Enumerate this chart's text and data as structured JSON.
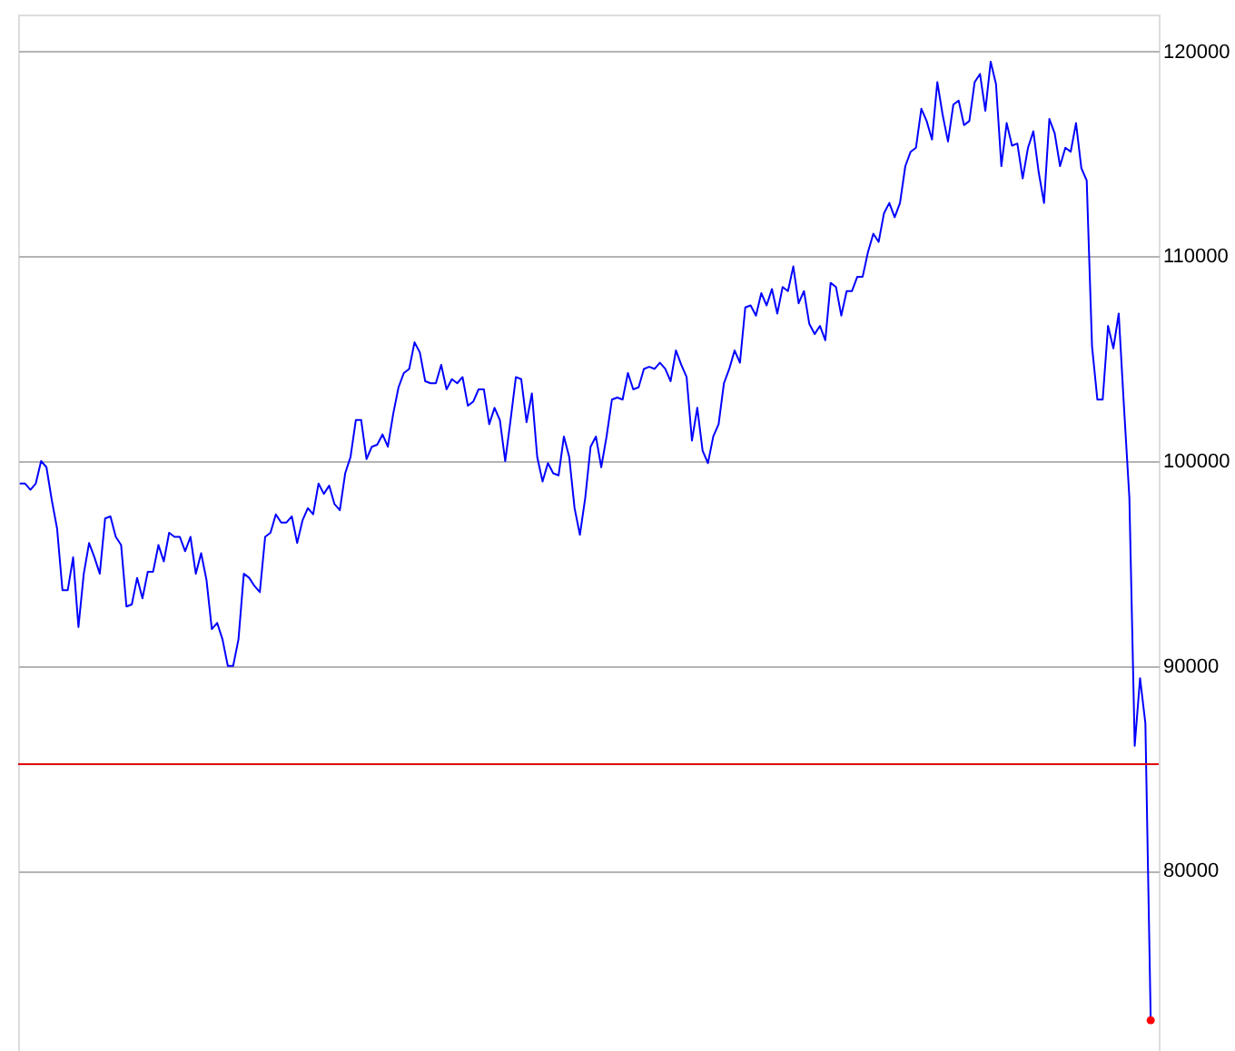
{
  "chart_data": {
    "type": "line",
    "categories": [
      null,
      null,
      null,
      null,
      null,
      null,
      null,
      null,
      null,
      null,
      null,
      null,
      null,
      null,
      null,
      null,
      null,
      null,
      null,
      null,
      null,
      null,
      null,
      null,
      null,
      null,
      null,
      null,
      null,
      null,
      null,
      null,
      null,
      null,
      null,
      null,
      null,
      null,
      null,
      null,
      null,
      null,
      null,
      null,
      null,
      null,
      null,
      null,
      null,
      null,
      null,
      null,
      null,
      null,
      null,
      null,
      null,
      null,
      null,
      null,
      null,
      null,
      null,
      null,
      null,
      null,
      null,
      null,
      null,
      null,
      null,
      null,
      null,
      null,
      null,
      null,
      null,
      null,
      null,
      null,
      null,
      null,
      null,
      null,
      null,
      null,
      null,
      null,
      null,
      null,
      null,
      null,
      null,
      null,
      null,
      null,
      null,
      null,
      null,
      null,
      null,
      null,
      null,
      null,
      null,
      null,
      null,
      null,
      null,
      null,
      null,
      null,
      null,
      null,
      null,
      null,
      null,
      null,
      null,
      null,
      null,
      null,
      null,
      null,
      null,
      null,
      null,
      null,
      null,
      null,
      null,
      null,
      null,
      null,
      null,
      null,
      null,
      null,
      null,
      null,
      null,
      null,
      null,
      null,
      null,
      null,
      null,
      null,
      null,
      null,
      null,
      null,
      null,
      null,
      null,
      null,
      null,
      null,
      null,
      null,
      null,
      null,
      null,
      null,
      null,
      null,
      null,
      null,
      null,
      null,
      null,
      null,
      null,
      null,
      null,
      null,
      null,
      null,
      null,
      null,
      null,
      null,
      null,
      null,
      null,
      null,
      null,
      null,
      null,
      null,
      null,
      null,
      null,
      null,
      null,
      null,
      null,
      null,
      null,
      null,
      null,
      null,
      null,
      null,
      null,
      null,
      null,
      null,
      null,
      null,
      null,
      null,
      null
    ],
    "ylim": [
      71200,
      121800
    ],
    "yticks": [
      80000,
      90000,
      100000,
      110000,
      120000
    ],
    "tick_labels": "y",
    "grid": "y",
    "ref_lines": [
      {
        "axis": "y",
        "value": 85200,
        "color": "#dd0000",
        "line_style": "solid"
      }
    ],
    "series": [
      {
        "color": "#0000ff",
        "marker": "none",
        "line_style": "solid",
        "values": [
          98900,
          98900,
          98600,
          98900,
          100000,
          99700,
          98100,
          96700,
          93700,
          93700,
          95300,
          91900,
          94500,
          96000,
          95300,
          94500,
          97200,
          97300,
          96300,
          95900,
          92900,
          93000,
          94300,
          93300,
          94600,
          94600,
          95900,
          95100,
          96500,
          96300,
          96300,
          95600,
          96300,
          94500,
          95500,
          94200,
          91800,
          92100,
          91300,
          90000,
          90000,
          91300,
          94500,
          94300,
          93900,
          93600,
          96300,
          96500,
          97400,
          97000,
          97000,
          97300,
          96000,
          97100,
          97700,
          97400,
          98900,
          98400,
          98800,
          97900,
          97600,
          99400,
          100200,
          102000,
          102000,
          100100,
          100700,
          100800,
          101300,
          100700,
          102300,
          103600,
          104300,
          104500,
          105800,
          105300,
          103900,
          103800,
          103800,
          104700,
          103500,
          104000,
          103800,
          104100,
          102700,
          102900,
          103500,
          103500,
          101800,
          102600,
          102000,
          100000,
          102000,
          104100,
          104000,
          101900,
          103300,
          100200,
          99000,
          99900,
          99400,
          99300,
          101200,
          100200,
          97700,
          96400,
          98200,
          100700,
          101200,
          99700,
          101200,
          103000,
          103100,
          103000,
          104300,
          103500,
          103600,
          104500,
          104600,
          104500,
          104800,
          104500,
          103900,
          105400,
          104700,
          104100,
          101000,
          102600,
          100500,
          99900,
          101200,
          101800,
          103800,
          104500,
          105400,
          104800,
          107500,
          107600,
          107100,
          108200,
          107600,
          108400,
          107200,
          108500,
          108300,
          109500,
          107700,
          108300,
          106700,
          106200,
          106600,
          105900,
          108700,
          108500,
          107100,
          108300,
          108300,
          109000,
          109000,
          110200,
          111100,
          110700,
          112100,
          112600,
          111900,
          112600,
          114400,
          115100,
          115300,
          117200,
          116600,
          115700,
          118500,
          116900,
          115600,
          117400,
          117600,
          116400,
          116600,
          118500,
          118900,
          117100,
          119500,
          118400,
          114400,
          116500,
          115400,
          115500,
          113800,
          115300,
          116100,
          114100,
          112600,
          116700,
          116000,
          114400,
          115300,
          115100,
          116500,
          114300,
          113700,
          105600,
          103000,
          103000,
          106600,
          105500,
          107200,
          102600,
          98200,
          86100,
          89400,
          87200,
          72700
        ]
      },
      {
        "type": "scatter",
        "color": "#ff0000",
        "marker": "circle",
        "values": [
          null,
          null,
          null,
          null,
          null,
          null,
          null,
          null,
          null,
          null,
          null,
          null,
          null,
          null,
          null,
          null,
          null,
          null,
          null,
          null,
          null,
          null,
          null,
          null,
          null,
          null,
          null,
          null,
          null,
          null,
          null,
          null,
          null,
          null,
          null,
          null,
          null,
          null,
          null,
          null,
          null,
          null,
          null,
          null,
          null,
          null,
          null,
          null,
          null,
          null,
          null,
          null,
          null,
          null,
          null,
          null,
          null,
          null,
          null,
          null,
          null,
          null,
          null,
          null,
          null,
          null,
          null,
          null,
          null,
          null,
          null,
          null,
          null,
          null,
          null,
          null,
          null,
          null,
          null,
          null,
          null,
          null,
          null,
          null,
          null,
          null,
          null,
          null,
          null,
          null,
          null,
          null,
          null,
          null,
          null,
          null,
          null,
          null,
          null,
          null,
          null,
          null,
          null,
          null,
          null,
          null,
          null,
          null,
          null,
          null,
          null,
          null,
          null,
          null,
          null,
          null,
          null,
          null,
          null,
          null,
          null,
          null,
          null,
          null,
          null,
          null,
          null,
          null,
          null,
          null,
          null,
          null,
          null,
          null,
          null,
          null,
          null,
          null,
          null,
          null,
          null,
          null,
          null,
          null,
          null,
          null,
          null,
          null,
          null,
          null,
          null,
          null,
          null,
          null,
          null,
          null,
          null,
          null,
          null,
          null,
          null,
          null,
          null,
          null,
          null,
          null,
          null,
          null,
          null,
          null,
          null,
          null,
          null,
          null,
          null,
          null,
          null,
          null,
          null,
          null,
          null,
          null,
          null,
          null,
          null,
          null,
          null,
          null,
          null,
          null,
          null,
          null,
          null,
          null,
          null,
          null,
          null,
          null,
          null,
          null,
          null,
          null,
          null,
          null,
          null,
          null,
          null,
          null,
          null,
          null,
          null,
          null,
          72700
        ]
      }
    ]
  }
}
